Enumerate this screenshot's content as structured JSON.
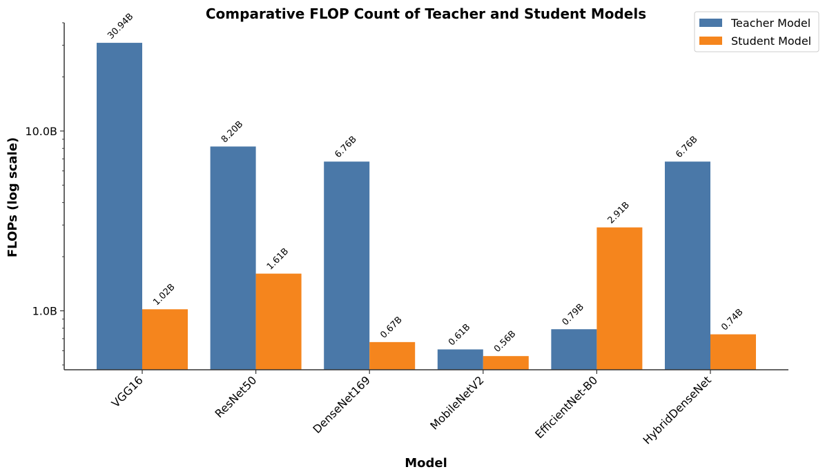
{
  "colors": {
    "teacher": "#4a78a8",
    "student": "#f5851d",
    "axis": "#333333"
  },
  "chart_data": {
    "type": "bar",
    "title": "Comparative FLOP Count of Teacher and Student Models",
    "xlabel": "Model",
    "ylabel": "FLOPs (log scale)",
    "yscale": "log",
    "ylim": [
      0.47,
      40
    ],
    "yticks": [
      {
        "value": 1.0,
        "label": "1.0B"
      },
      {
        "value": 10.0,
        "label": "10.0B"
      }
    ],
    "grid": false,
    "legend_position": "top-right",
    "categories": [
      "VGG16",
      "ResNet50",
      "DenseNet169",
      "MobileNetV2",
      "EfficientNet-B0",
      "HybridDenseNet"
    ],
    "series": [
      {
        "name": "Teacher Model",
        "color": "#4a78a8",
        "values": [
          30.94,
          8.2,
          6.76,
          0.61,
          0.79,
          6.76
        ],
        "labels": [
          "30.94B",
          "8.20B",
          "6.76B",
          "0.61B",
          "0.79B",
          "6.76B"
        ]
      },
      {
        "name": "Student Model",
        "color": "#f5851d",
        "values": [
          1.02,
          1.61,
          0.67,
          0.56,
          2.91,
          0.74
        ],
        "labels": [
          "1.02B",
          "1.61B",
          "0.67B",
          "0.56B",
          "2.91B",
          "0.74B"
        ]
      }
    ]
  }
}
